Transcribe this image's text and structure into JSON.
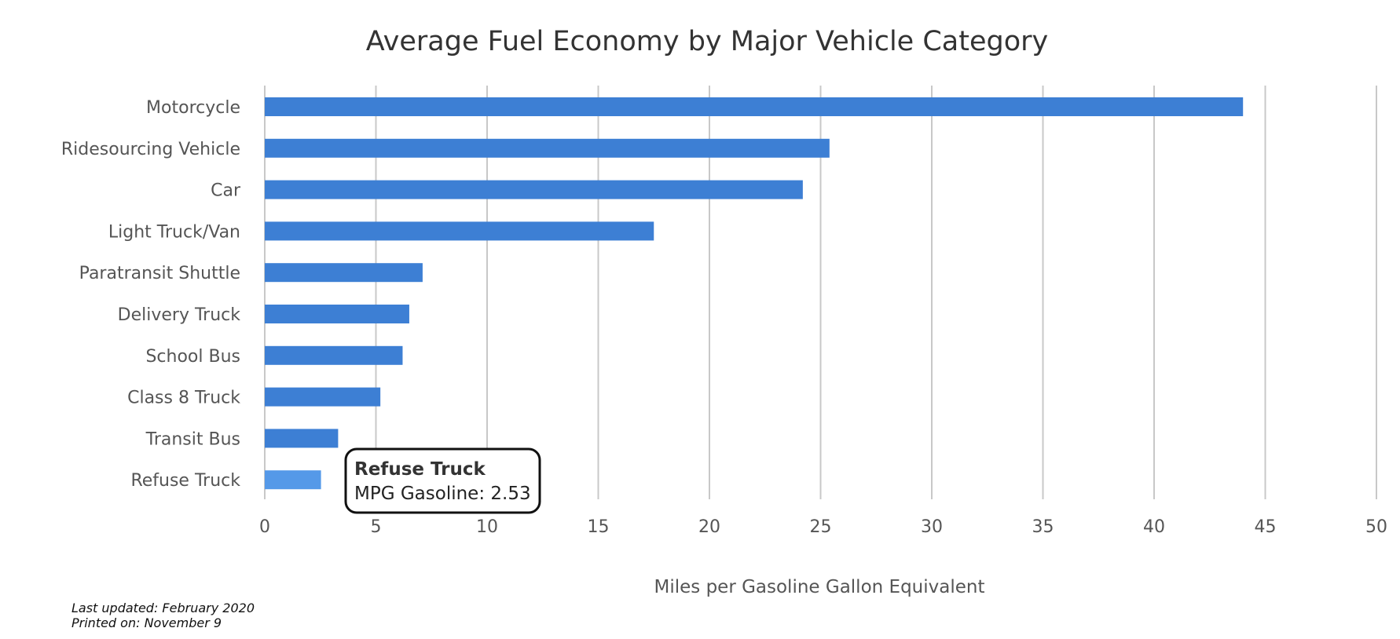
{
  "chart_data": {
    "type": "bar",
    "orientation": "horizontal",
    "title": "Average Fuel Economy by Major Vehicle Category",
    "xlabel": "Miles per Gasoline Gallon Equivalent",
    "ylabel": "",
    "categories": [
      "Motorcycle",
      "Ridesourcing Vehicle",
      "Car",
      "Light Truck/Van",
      "Paratransit Shuttle",
      "Delivery Truck",
      "School Bus",
      "Class 8 Truck",
      "Transit Bus",
      "Refuse Truck"
    ],
    "series": [
      {
        "values": [
          44.0,
          25.4,
          24.2,
          17.5,
          7.1,
          6.5,
          6.2,
          5.2,
          3.3,
          2.53
        ]
      }
    ],
    "xlim": [
      0,
      50
    ],
    "ticks": [
      "0",
      "5",
      "10",
      "15",
      "20",
      "25",
      "30",
      "35",
      "40",
      "45",
      "50"
    ],
    "grid": true,
    "legend": "none",
    "bar_color": "#3d7fd4",
    "highlight_color": "#5599e8",
    "highlighted_category": "Refuse Truck",
    "tooltip": {
      "title": "Refuse Truck",
      "text": "MPG Gasoline: 2.53"
    }
  },
  "footer": {
    "last_updated": "Last updated: February 2020",
    "printed_on": "Printed on: November 9"
  }
}
